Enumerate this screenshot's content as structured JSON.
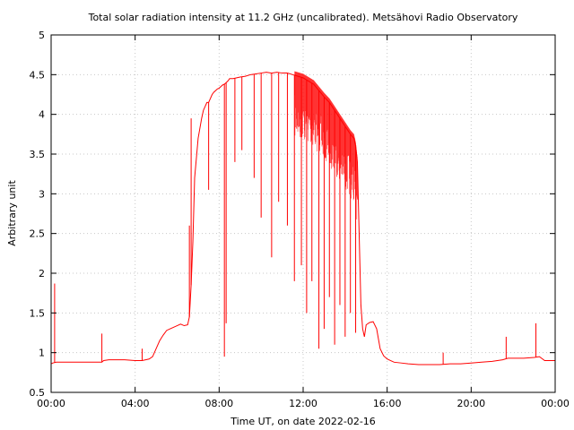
{
  "chart_data": {
    "type": "line",
    "title": "Total solar radiation intensity at 11.2 GHz (uncalibrated). Metsähovi Radio Observatory",
    "xlabel": "Time UT, on date 2022-02-16",
    "ylabel": "Arbitrary unit",
    "xlim": [
      "00:00",
      "24:00"
    ],
    "ylim": [
      0.5,
      5
    ],
    "x_ticks": [
      "00:00",
      "04:00",
      "08:00",
      "12:00",
      "16:00",
      "20:00",
      "00:00"
    ],
    "y_ticks": [
      "0.5",
      "1",
      "1.5",
      "2",
      "2.5",
      "3",
      "3.5",
      "4",
      "4.5",
      "5"
    ],
    "grid": true,
    "line_color": "#ff0000",
    "series": [
      {
        "x": [
          "00:00",
          "00:05",
          "00:15",
          "00:30",
          "01:00",
          "01:30",
          "02:00",
          "02:25",
          "02:30",
          "02:45",
          "03:00",
          "03:30",
          "04:00",
          "04:20",
          "04:30",
          "04:40",
          "04:50",
          "05:00",
          "05:10",
          "05:20",
          "05:30",
          "05:40",
          "05:50",
          "06:00",
          "06:10",
          "06:20",
          "06:30",
          "06:35",
          "06:40",
          "06:45",
          "06:50",
          "07:00",
          "07:10",
          "07:15",
          "07:20",
          "07:25",
          "07:30",
          "07:35",
          "07:40",
          "07:45",
          "07:50",
          "07:55",
          "08:00",
          "08:05",
          "08:10",
          "08:15",
          "08:20",
          "08:25",
          "08:30",
          "08:40",
          "08:50",
          "09:00",
          "09:15",
          "09:30",
          "09:45",
          "10:00",
          "10:15",
          "10:30",
          "10:45",
          "11:00",
          "11:15",
          "11:30",
          "11:45",
          "12:00",
          "12:15",
          "12:30",
          "12:45",
          "13:00",
          "13:15",
          "13:30",
          "13:45",
          "14:00",
          "14:15",
          "14:25",
          "14:30",
          "14:35",
          "14:40",
          "14:45",
          "14:50",
          "14:55",
          "15:00",
          "15:10",
          "15:20",
          "15:30",
          "15:40",
          "15:50",
          "16:00",
          "16:10",
          "16:20",
          "16:40",
          "17:00",
          "17:30",
          "18:00",
          "18:30",
          "19:00",
          "19:30",
          "20:00",
          "20:30",
          "21:00",
          "21:30",
          "21:45",
          "22:00",
          "22:30",
          "23:00",
          "23:15",
          "23:30",
          "24:00"
        ],
        "y": [
          0.86,
          0.87,
          0.88,
          0.88,
          0.88,
          0.88,
          0.88,
          0.88,
          0.9,
          0.91,
          0.91,
          0.91,
          0.9,
          0.9,
          0.91,
          0.92,
          0.95,
          1.05,
          1.15,
          1.22,
          1.28,
          1.3,
          1.32,
          1.34,
          1.36,
          1.34,
          1.35,
          1.45,
          1.85,
          2.4,
          3.2,
          3.7,
          3.95,
          4.05,
          4.1,
          4.15,
          4.15,
          4.2,
          4.25,
          4.28,
          4.3,
          4.32,
          4.33,
          4.35,
          4.37,
          4.38,
          4.4,
          4.42,
          4.45,
          4.45,
          4.46,
          4.47,
          4.48,
          4.5,
          4.51,
          4.52,
          4.53,
          4.52,
          4.53,
          4.52,
          4.52,
          4.5,
          4.48,
          4.46,
          4.42,
          4.38,
          4.3,
          4.22,
          4.15,
          4.05,
          3.95,
          3.85,
          3.75,
          3.7,
          3.6,
          3.4,
          2.5,
          1.6,
          1.3,
          1.2,
          1.35,
          1.38,
          1.39,
          1.3,
          1.05,
          0.96,
          0.92,
          0.9,
          0.88,
          0.87,
          0.86,
          0.85,
          0.85,
          0.85,
          0.86,
          0.86,
          0.87,
          0.88,
          0.89,
          0.91,
          0.93,
          0.93,
          0.93,
          0.94,
          0.95,
          0.9,
          0.9
        ]
      }
    ],
    "dips": [
      {
        "x": "06:35",
        "y": 2.6
      },
      {
        "x": "07:30",
        "y": 3.05
      },
      {
        "x": "08:15",
        "y": 0.95
      },
      {
        "x": "08:20",
        "y": 1.37
      },
      {
        "x": "08:45",
        "y": 3.4
      },
      {
        "x": "09:05",
        "y": 3.55
      },
      {
        "x": "09:40",
        "y": 3.2
      },
      {
        "x": "10:00",
        "y": 2.7
      },
      {
        "x": "10:30",
        "y": 2.2
      },
      {
        "x": "10:50",
        "y": 2.9
      },
      {
        "x": "11:15",
        "y": 2.6
      },
      {
        "x": "11:35",
        "y": 1.9
      },
      {
        "x": "11:55",
        "y": 2.1
      },
      {
        "x": "12:10",
        "y": 1.5
      },
      {
        "x": "12:25",
        "y": 1.9
      },
      {
        "x": "12:45",
        "y": 1.05
      },
      {
        "x": "13:00",
        "y": 1.3
      },
      {
        "x": "13:15",
        "y": 1.7
      },
      {
        "x": "13:30",
        "y": 1.1
      },
      {
        "x": "13:45",
        "y": 1.6
      },
      {
        "x": "14:00",
        "y": 1.2
      },
      {
        "x": "14:15",
        "y": 1.5
      },
      {
        "x": "14:30",
        "y": 1.25
      }
    ],
    "spikes": [
      {
        "x": "00:10",
        "y": 1.87
      },
      {
        "x": "02:25",
        "y": 1.24
      },
      {
        "x": "04:20",
        "y": 1.05
      },
      {
        "x": "06:40",
        "y": 3.95
      },
      {
        "x": "18:40",
        "y": 1.0
      },
      {
        "x": "21:40",
        "y": 1.2
      },
      {
        "x": "23:05",
        "y": 1.37
      }
    ]
  }
}
